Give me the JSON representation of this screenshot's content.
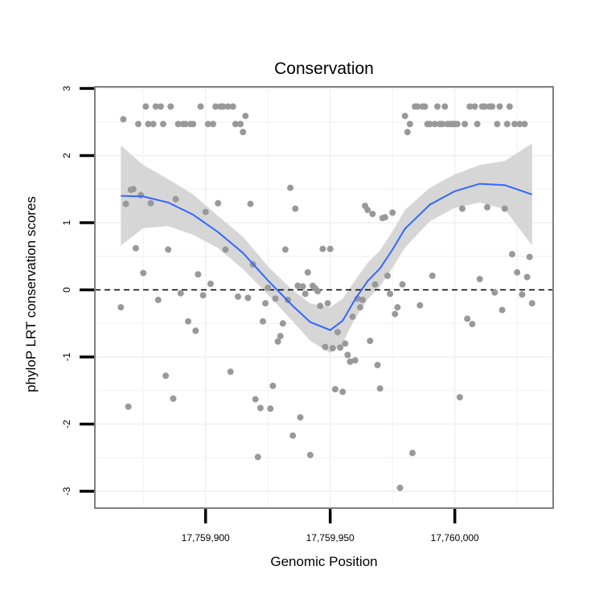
{
  "chart_data": {
    "type": "scatter",
    "title": "Conservation",
    "xlabel": "Genomic Position",
    "ylabel": "phyloP LRT conservation scores",
    "xlim": [
      17759858,
      17760042
    ],
    "ylim": [
      -3.2,
      3.05
    ],
    "x_ticks": [
      17759900,
      17759950,
      17760000
    ],
    "x_tick_labels": [
      "17,759,900",
      "17,759,950",
      "17,760,000"
    ],
    "y_ticks": [
      -3,
      -2,
      -1,
      0,
      1,
      2,
      3
    ],
    "y_tick_labels": [
      "-3",
      "-2",
      "-1",
      "0",
      "1",
      "2",
      "3"
    ],
    "grid": true,
    "reference_line": {
      "y": 0,
      "style": "dashed"
    },
    "colors": {
      "points": "#999999",
      "smooth": "#3366ff",
      "band": "#d6d6d6",
      "panel_border": "#7f7f7f",
      "grid": "#f3f3f3"
    },
    "points": [
      [
        17759866,
        -0.26
      ],
      [
        17759867,
        2.54
      ],
      [
        17759868,
        1.28
      ],
      [
        17759869,
        -1.74
      ],
      [
        17759870,
        1.49
      ],
      [
        17759871,
        1.5
      ],
      [
        17759872,
        0.62
      ],
      [
        17759873,
        2.47
      ],
      [
        17759874,
        1.41
      ],
      [
        17759875,
        0.25
      ],
      [
        17759876,
        2.73
      ],
      [
        17759877,
        2.47
      ],
      [
        17759878,
        1.29
      ],
      [
        17759879,
        2.47
      ],
      [
        17759880,
        2.73
      ],
      [
        17759881,
        -0.15
      ],
      [
        17759882,
        2.73
      ],
      [
        17759883,
        2.47
      ],
      [
        17759884,
        -1.28
      ],
      [
        17759885,
        0.6
      ],
      [
        17759886,
        2.73
      ],
      [
        17759887,
        -1.62
      ],
      [
        17759888,
        1.35
      ],
      [
        17759889,
        2.47
      ],
      [
        17759890,
        -0.05
      ],
      [
        17759891,
        2.47
      ],
      [
        17759892,
        2.47
      ],
      [
        17759893,
        -0.47
      ],
      [
        17759894,
        2.47
      ],
      [
        17759895,
        2.47
      ],
      [
        17759896,
        -0.61
      ],
      [
        17759897,
        0.23
      ],
      [
        17759898,
        2.73
      ],
      [
        17759899,
        -0.08
      ],
      [
        17759900,
        1.16
      ],
      [
        17759901,
        2.47
      ],
      [
        17759902,
        0.09
      ],
      [
        17759903,
        2.47
      ],
      [
        17759904,
        2.73
      ],
      [
        17759905,
        1.29
      ],
      [
        17759906,
        2.73
      ],
      [
        17759907,
        2.73
      ],
      [
        17759908,
        0.6
      ],
      [
        17759909,
        2.73
      ],
      [
        17759910,
        -1.22
      ],
      [
        17759911,
        2.73
      ],
      [
        17759912,
        2.47
      ],
      [
        17759913,
        -0.1
      ],
      [
        17759914,
        2.47
      ],
      [
        17759915,
        2.35
      ],
      [
        17759916,
        2.59
      ],
      [
        17759917,
        -0.12
      ],
      [
        17759918,
        1.28
      ],
      [
        17759919,
        0.38
      ],
      [
        17759920,
        -1.63
      ],
      [
        17759921,
        -2.49
      ],
      [
        17759922,
        -1.76
      ],
      [
        17759923,
        -0.47
      ],
      [
        17759924,
        -0.2
      ],
      [
        17759925,
        0.03
      ],
      [
        17759926,
        -1.77
      ],
      [
        17759927,
        -1.43
      ],
      [
        17759928,
        -0.13
      ],
      [
        17759929,
        -0.77
      ],
      [
        17759930,
        -0.69
      ],
      [
        17759931,
        -0.5
      ],
      [
        17759932,
        0.6
      ],
      [
        17759933,
        -0.15
      ],
      [
        17759934,
        1.52
      ],
      [
        17759935,
        -2.17
      ],
      [
        17759936,
        1.21
      ],
      [
        17759937,
        0.06
      ],
      [
        17759938,
        -1.9
      ],
      [
        17759939,
        0.05
      ],
      [
        17759940,
        -0.06
      ],
      [
        17759941,
        0.26
      ],
      [
        17759942,
        -2.46
      ],
      [
        17759943,
        0.06
      ],
      [
        17759944,
        0.02
      ],
      [
        17759945,
        -0.02
      ],
      [
        17759946,
        -0.24
      ],
      [
        17759947,
        0.61
      ],
      [
        17759948,
        -0.85
      ],
      [
        17759949,
        -0.2
      ],
      [
        17759950,
        0.61
      ],
      [
        17759951,
        -0.87
      ],
      [
        17759952,
        -1.48
      ],
      [
        17759953,
        -0.63
      ],
      [
        17759954,
        -0.86
      ],
      [
        17759955,
        -1.52
      ],
      [
        17759956,
        -0.8
      ],
      [
        17759957,
        -0.97
      ],
      [
        17759958,
        -1.07
      ],
      [
        17759959,
        -0.4
      ],
      [
        17759960,
        -1.05
      ],
      [
        17759961,
        -0.13
      ],
      [
        17759962,
        -0.26
      ],
      [
        17759963,
        -0.15
      ],
      [
        17759964,
        1.25
      ],
      [
        17759965,
        1.19
      ],
      [
        17759966,
        -0.76
      ],
      [
        17759967,
        1.13
      ],
      [
        17759968,
        0.08
      ],
      [
        17759969,
        -1.12
      ],
      [
        17759970,
        -1.47
      ],
      [
        17759971,
        1.07
      ],
      [
        17759972,
        1.08
      ],
      [
        17759973,
        0.21
      ],
      [
        17759974,
        -0.06
      ],
      [
        17759975,
        1.15
      ],
      [
        17759976,
        -0.36
      ],
      [
        17759977,
        -0.26
      ],
      [
        17759978,
        -2.95
      ],
      [
        17759979,
        0.08
      ],
      [
        17759980,
        2.59
      ],
      [
        17759981,
        2.35
      ],
      [
        17759982,
        2.47
      ],
      [
        17759983,
        -2.43
      ],
      [
        17759984,
        2.73
      ],
      [
        17759985,
        2.73
      ],
      [
        17759986,
        -0.23
      ],
      [
        17759987,
        2.73
      ],
      [
        17759988,
        2.73
      ],
      [
        17759989,
        2.47
      ],
      [
        17759990,
        2.47
      ],
      [
        17759991,
        0.21
      ],
      [
        17759992,
        2.47
      ],
      [
        17759993,
        2.73
      ],
      [
        17759994,
        2.47
      ],
      [
        17759995,
        2.47
      ],
      [
        17759996,
        2.73
      ],
      [
        17759997,
        2.47
      ],
      [
        17759998,
        2.47
      ],
      [
        17759999,
        2.47
      ],
      [
        17760000,
        2.47
      ],
      [
        17760001,
        2.47
      ],
      [
        17760002,
        -1.6
      ],
      [
        17760003,
        1.21
      ],
      [
        17760004,
        2.47
      ],
      [
        17760005,
        -0.43
      ],
      [
        17760006,
        2.73
      ],
      [
        17760007,
        -0.51
      ],
      [
        17760008,
        2.73
      ],
      [
        17760009,
        2.47
      ],
      [
        17760010,
        0.16
      ],
      [
        17760011,
        2.73
      ],
      [
        17760012,
        2.73
      ],
      [
        17760013,
        1.23
      ],
      [
        17760014,
        2.73
      ],
      [
        17760015,
        2.73
      ],
      [
        17760016,
        -0.04
      ],
      [
        17760017,
        2.47
      ],
      [
        17760018,
        2.73
      ],
      [
        17760019,
        -0.3
      ],
      [
        17760020,
        1.21
      ],
      [
        17760021,
        2.47
      ],
      [
        17760022,
        2.73
      ],
      [
        17760023,
        0.53
      ],
      [
        17760024,
        2.47
      ],
      [
        17760025,
        0.26
      ],
      [
        17760026,
        2.47
      ],
      [
        17760027,
        -0.07
      ],
      [
        17760028,
        2.47
      ],
      [
        17760029,
        0.19
      ],
      [
        17760030,
        0.49
      ],
      [
        17760031,
        -0.2
      ]
    ],
    "smooth": {
      "x": [
        17759866,
        17759875,
        17759885,
        17759895,
        17759905,
        17759915,
        17759925,
        17759935,
        17759942,
        17759950,
        17759955,
        17759960,
        17759965,
        17759970,
        17759975,
        17759980,
        17759990,
        17760000,
        17760010,
        17760020,
        17760031
      ],
      "y": [
        1.4,
        1.39,
        1.3,
        1.12,
        0.86,
        0.55,
        0.14,
        -0.24,
        -0.48,
        -0.6,
        -0.46,
        -0.14,
        0.13,
        0.32,
        0.6,
        0.91,
        1.27,
        1.47,
        1.58,
        1.56,
        1.42
      ],
      "lower": [
        0.66,
        0.92,
        0.95,
        0.82,
        0.62,
        0.31,
        -0.07,
        -0.47,
        -0.76,
        -0.94,
        -0.79,
        -0.42,
        -0.14,
        0.05,
        0.33,
        0.63,
        1.02,
        1.22,
        1.3,
        1.2,
        0.66
      ],
      "upper": [
        2.15,
        1.86,
        1.65,
        1.42,
        1.1,
        0.79,
        0.35,
        -0.01,
        -0.2,
        -0.26,
        -0.13,
        0.14,
        0.4,
        0.59,
        0.87,
        1.19,
        1.52,
        1.72,
        1.86,
        1.92,
        2.18
      ]
    }
  }
}
